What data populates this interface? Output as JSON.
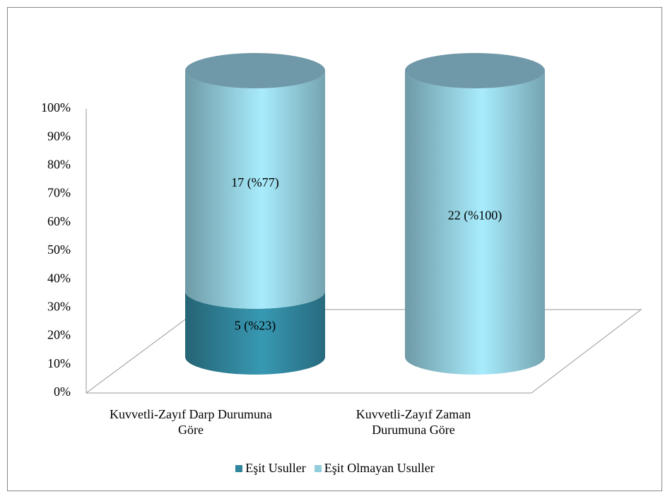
{
  "chart_data": {
    "type": "cylinder-stacked",
    "categories": [
      "Kuvvetli-Zayıf Darp Durumuna Göre",
      "Kuvvetli-Zayıf Zaman Durumuna Göre"
    ],
    "series": [
      {
        "name": "Eşit Usuller",
        "color": "#31859c",
        "values": [
          23,
          0
        ],
        "value_labels": [
          "5 (%23)",
          null
        ]
      },
      {
        "name": "Eşit Olmayan Usuller",
        "color": "#92cddc",
        "values": [
          77,
          100
        ],
        "value_labels": [
          "17 (%77)",
          "22 (%100)"
        ]
      }
    ],
    "ylim": [
      0,
      100
    ],
    "yticks": [
      {
        "value": 0,
        "label": "0%"
      },
      {
        "value": 10,
        "label": "10%"
      },
      {
        "value": 20,
        "label": "20%"
      },
      {
        "value": 30,
        "label": "30%"
      },
      {
        "value": 40,
        "label": "40%"
      },
      {
        "value": 50,
        "label": "50%"
      },
      {
        "value": 60,
        "label": "60%"
      },
      {
        "value": 70,
        "label": "70%"
      },
      {
        "value": 80,
        "label": "80%"
      },
      {
        "value": 90,
        "label": "90%"
      },
      {
        "value": 100,
        "label": "100%"
      }
    ],
    "legend": "bottom"
  }
}
